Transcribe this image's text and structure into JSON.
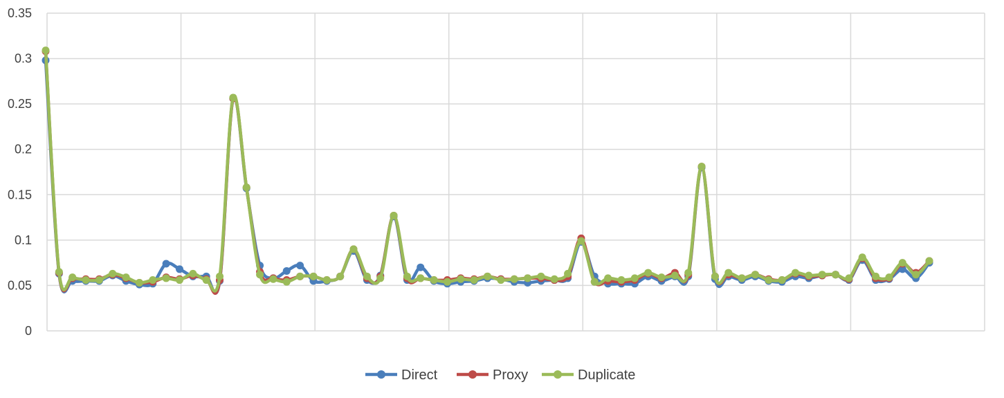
{
  "chart_data": {
    "type": "line",
    "title": "",
    "xlabel": "",
    "ylabel": "",
    "ylim": [
      0,
      0.35
    ],
    "yticks": [
      "0",
      "0.05",
      "0.1",
      "0.15",
      "0.2",
      "0.25",
      "0.3",
      "0.35"
    ],
    "x_count": 67,
    "grid": true,
    "legend_position": "bottom",
    "series": [
      {
        "name": "Direct",
        "color": "#4a7ebb",
        "values": [
          0.298,
          0.063,
          0.055,
          0.055,
          0.055,
          0.061,
          0.055,
          0.051,
          0.052,
          0.074,
          0.068,
          0.06,
          0.06,
          0.055,
          0.256,
          0.157,
          0.072,
          0.058,
          0.066,
          0.072,
          0.055,
          0.055,
          0.06,
          0.088,
          0.056,
          0.061,
          0.126,
          0.056,
          0.07,
          0.055,
          0.052,
          0.054,
          0.055,
          0.058,
          0.057,
          0.054,
          0.053,
          0.055,
          0.056,
          0.058,
          0.098,
          0.06,
          0.052,
          0.052,
          0.052,
          0.06,
          0.055,
          0.06,
          0.06,
          0.18,
          0.057,
          0.06,
          0.056,
          0.06,
          0.055,
          0.054,
          0.06,
          0.058,
          0.061,
          0.062,
          0.056,
          0.078,
          0.056,
          0.057,
          0.068,
          0.058,
          0.075
        ]
      },
      {
        "name": "Proxy",
        "color": "#be4b48",
        "values": [
          0.308,
          0.064,
          0.058,
          0.057,
          0.057,
          0.062,
          0.058,
          0.053,
          0.054,
          0.059,
          0.057,
          0.061,
          0.057,
          0.056,
          0.256,
          0.158,
          0.065,
          0.058,
          0.056,
          0.06,
          0.06,
          0.056,
          0.06,
          0.09,
          0.058,
          0.06,
          0.127,
          0.058,
          0.058,
          0.056,
          0.056,
          0.058,
          0.057,
          0.06,
          0.057,
          0.057,
          0.058,
          0.058,
          0.056,
          0.06,
          0.102,
          0.054,
          0.055,
          0.054,
          0.056,
          0.063,
          0.058,
          0.064,
          0.062,
          0.181,
          0.06,
          0.062,
          0.058,
          0.062,
          0.057,
          0.056,
          0.063,
          0.06,
          0.061,
          0.062,
          0.057,
          0.08,
          0.058,
          0.058,
          0.074,
          0.064,
          0.077
        ]
      },
      {
        "name": "Duplicate",
        "color": "#9bbb59",
        "values": [
          0.309,
          0.065,
          0.059,
          0.056,
          0.056,
          0.063,
          0.059,
          0.053,
          0.056,
          0.058,
          0.056,
          0.063,
          0.056,
          0.06,
          0.257,
          0.158,
          0.062,
          0.057,
          0.054,
          0.06,
          0.06,
          0.056,
          0.06,
          0.09,
          0.06,
          0.058,
          0.127,
          0.06,
          0.058,
          0.056,
          0.054,
          0.057,
          0.056,
          0.06,
          0.056,
          0.057,
          0.058,
          0.06,
          0.057,
          0.063,
          0.099,
          0.054,
          0.058,
          0.056,
          0.058,
          0.064,
          0.059,
          0.061,
          0.064,
          0.181,
          0.06,
          0.064,
          0.058,
          0.062,
          0.056,
          0.056,
          0.064,
          0.061,
          0.062,
          0.062,
          0.058,
          0.081,
          0.06,
          0.059,
          0.075,
          0.062,
          0.077
        ]
      }
    ]
  }
}
